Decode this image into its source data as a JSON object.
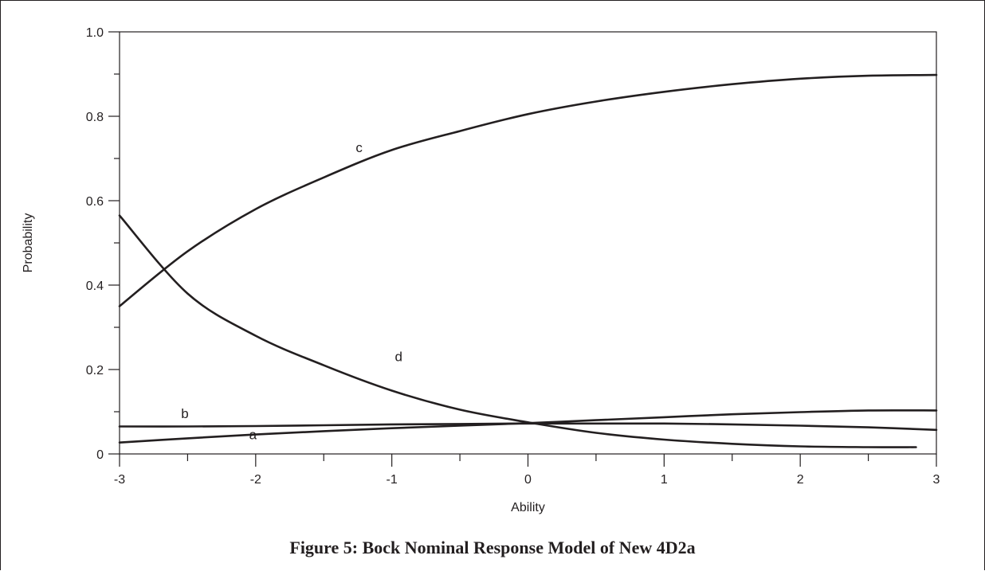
{
  "caption": "Figure 5:  Bock Nominal Response Model of New 4D2a",
  "chart_data": {
    "type": "line",
    "title": "",
    "xlabel": "Ability",
    "ylabel": "Probability",
    "xlim": [
      -3,
      3
    ],
    "ylim": [
      0,
      1.0
    ],
    "x_ticks": [
      "-3",
      "-2",
      "-1",
      "0",
      "1",
      "2",
      "3"
    ],
    "y_ticks": [
      "0",
      "0.2",
      "0.4",
      "0.6",
      "0.8",
      "1.0"
    ],
    "grid": false,
    "legend": "none",
    "series": [
      {
        "name": "c",
        "x": [
          -3,
          -2.5,
          -2,
          -1.5,
          -1,
          -0.5,
          0,
          0.5,
          1,
          1.5,
          2,
          2.5,
          3
        ],
        "y": [
          0.35,
          0.48,
          0.58,
          0.655,
          0.72,
          0.765,
          0.805,
          0.835,
          0.858,
          0.876,
          0.889,
          0.896,
          0.898
        ]
      },
      {
        "name": "d",
        "x": [
          -3,
          -2.5,
          -2,
          -1.5,
          -1,
          -0.5,
          0,
          0.5,
          1,
          1.5,
          2,
          2.5,
          2.85
        ],
        "y": [
          0.565,
          0.38,
          0.28,
          0.21,
          0.15,
          0.105,
          0.075,
          0.05,
          0.034,
          0.024,
          0.018,
          0.016,
          0.016
        ]
      },
      {
        "name": "b",
        "x": [
          -3,
          -2.5,
          -2,
          -1.5,
          -1,
          -0.5,
          0,
          0.5,
          1,
          1.5,
          2,
          2.5,
          3
        ],
        "y": [
          0.065,
          0.065,
          0.066,
          0.068,
          0.07,
          0.071,
          0.072,
          0.072,
          0.072,
          0.07,
          0.067,
          0.063,
          0.057
        ]
      },
      {
        "name": "a",
        "x": [
          -3,
          -2.5,
          -2,
          -1.5,
          -1,
          -0.5,
          0,
          0.5,
          1,
          1.5,
          2,
          2.5,
          3
        ],
        "y": [
          0.027,
          0.037,
          0.046,
          0.054,
          0.061,
          0.067,
          0.073,
          0.08,
          0.087,
          0.094,
          0.099,
          0.103,
          0.103
        ]
      }
    ],
    "annotations": [
      {
        "text": "c",
        "x": -1.24,
        "y": 0.715
      },
      {
        "text": "d",
        "x": -0.95,
        "y": 0.22
      },
      {
        "text": "b",
        "x": -2.52,
        "y": 0.085
      },
      {
        "text": "a",
        "x": -2.02,
        "y": 0.035
      }
    ]
  }
}
